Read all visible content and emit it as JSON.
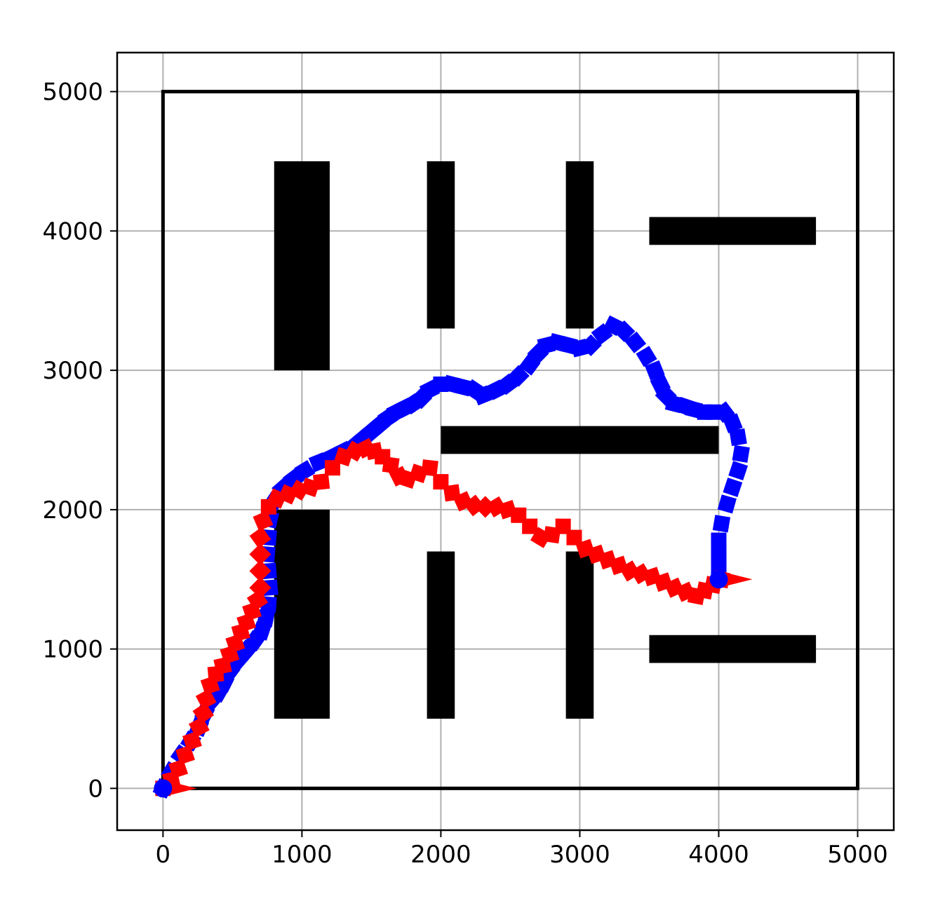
{
  "chart_data": {
    "type": "scatter",
    "title": "",
    "xlabel": "",
    "ylabel": "",
    "xlim": [
      -330,
      5260
    ],
    "ylim": [
      -300,
      5280
    ],
    "grid": true,
    "x_ticks": [
      {
        "value": 0,
        "label": "0"
      },
      {
        "value": 1000,
        "label": "1000"
      },
      {
        "value": 2000,
        "label": "2000"
      },
      {
        "value": 3000,
        "label": "3000"
      },
      {
        "value": 4000,
        "label": "4000"
      },
      {
        "value": 5000,
        "label": "5000"
      }
    ],
    "y_ticks": [
      {
        "value": 0,
        "label": "0"
      },
      {
        "value": 1000,
        "label": "1000"
      },
      {
        "value": 2000,
        "label": "2000"
      },
      {
        "value": 3000,
        "label": "3000"
      },
      {
        "value": 4000,
        "label": "4000"
      },
      {
        "value": 5000,
        "label": "5000"
      }
    ],
    "boundary": {
      "x0": 0,
      "y0": 0,
      "x1": 5000,
      "y1": 5000,
      "color": "#000000"
    },
    "obstacles": [
      {
        "x0": 800,
        "y0": 3000,
        "x1": 1200,
        "y1": 4500
      },
      {
        "x0": 1900,
        "y0": 3300,
        "x1": 2100,
        "y1": 4500
      },
      {
        "x0": 2900,
        "y0": 3300,
        "x1": 3100,
        "y1": 4500
      },
      {
        "x0": 3500,
        "y0": 3900,
        "x1": 4700,
        "y1": 4100
      },
      {
        "x0": 2000,
        "y0": 2400,
        "x1": 4000,
        "y1": 2600
      },
      {
        "x0": 800,
        "y0": 500,
        "x1": 1200,
        "y1": 2000
      },
      {
        "x0": 1900,
        "y0": 500,
        "x1": 2100,
        "y1": 1700
      },
      {
        "x0": 2900,
        "y0": 500,
        "x1": 3100,
        "y1": 1700
      },
      {
        "x0": 3500,
        "y0": 900,
        "x1": 4700,
        "y1": 1100
      }
    ],
    "obstacle_color": "#000000",
    "series": [
      {
        "color": "#0000ff",
        "marker": "square",
        "x": [
          0,
          60,
          130,
          200,
          260,
          300,
          340,
          400,
          440,
          480,
          540,
          600,
          660,
          710,
          740,
          760,
          770,
          760,
          750,
          760,
          770,
          800,
          860,
          940,
          1020,
          1120,
          1220,
          1300,
          1380,
          1440,
          1500,
          1560,
          1620,
          1680,
          1740,
          1800,
          1860,
          1920,
          2000,
          2080,
          2160,
          2240,
          2300,
          2400,
          2480,
          2560,
          2640,
          2700,
          2760,
          2840,
          2920,
          3000,
          3080,
          3160,
          3240,
          3320,
          3400,
          3480,
          3540,
          3580,
          3620,
          3680,
          3760,
          3820,
          3900,
          3960,
          4040,
          4100,
          4140,
          4160,
          4140,
          4100,
          4060,
          4020,
          4000,
          4000,
          4000,
          4000
        ],
        "y": [
          0,
          120,
          240,
          340,
          440,
          540,
          620,
          690,
          760,
          840,
          920,
          990,
          1060,
          1130,
          1220,
          1320,
          1440,
          1560,
          1680,
          1800,
          1930,
          2060,
          2150,
          2220,
          2280,
          2340,
          2380,
          2420,
          2460,
          2510,
          2560,
          2610,
          2660,
          2700,
          2730,
          2760,
          2800,
          2860,
          2900,
          2900,
          2880,
          2860,
          2820,
          2860,
          2900,
          2960,
          3040,
          3120,
          3180,
          3200,
          3180,
          3160,
          3180,
          3260,
          3320,
          3280,
          3200,
          3100,
          3000,
          2900,
          2820,
          2760,
          2740,
          2720,
          2700,
          2700,
          2700,
          2620,
          2520,
          2400,
          2280,
          2160,
          2040,
          1900,
          1780,
          1680,
          1580,
          1500
        ]
      },
      {
        "color": "#ff0000",
        "marker": "diamond",
        "x": [
          0,
          60,
          110,
          160,
          210,
          260,
          290,
          310,
          340,
          380,
          430,
          480,
          520,
          560,
          600,
          640,
          680,
          700,
          700,
          700,
          700,
          720,
          760,
          820,
          900,
          980,
          1060,
          1140,
          1220,
          1300,
          1380,
          1460,
          1520,
          1580,
          1640,
          1700,
          1760,
          1840,
          1920,
          2000,
          2080,
          2160,
          2240,
          2320,
          2400,
          2480,
          2560,
          2640,
          2720,
          2800,
          2880,
          2960,
          3040,
          3120,
          3200,
          3280,
          3360,
          3440,
          3520,
          3600,
          3680,
          3760,
          3840,
          3900,
          3960,
          4020
        ],
        "y": [
          0,
          60,
          140,
          240,
          340,
          440,
          540,
          640,
          740,
          820,
          880,
          960,
          1040,
          1120,
          1190,
          1270,
          1350,
          1440,
          1560,
          1680,
          1800,
          1920,
          2020,
          2080,
          2110,
          2140,
          2160,
          2200,
          2300,
          2380,
          2420,
          2440,
          2420,
          2380,
          2320,
          2240,
          2220,
          2260,
          2300,
          2200,
          2120,
          2060,
          2030,
          2020,
          2020,
          2000,
          1960,
          1880,
          1800,
          1820,
          1880,
          1800,
          1720,
          1680,
          1640,
          1600,
          1560,
          1540,
          1520,
          1480,
          1440,
          1410,
          1380,
          1420,
          1460,
          1500
        ]
      }
    ],
    "start_markers": [
      {
        "x": 0,
        "y": 0,
        "color": "#0000ff"
      },
      {
        "x": 4000,
        "y": 1500,
        "color": "#0000ff"
      }
    ],
    "heading_arrows": [
      {
        "x": 0,
        "y": 0,
        "angle_deg": 0,
        "color": "#ff0000"
      },
      {
        "x": 4000,
        "y": 1500,
        "angle_deg": 0,
        "color": "#ff0000"
      }
    ]
  }
}
